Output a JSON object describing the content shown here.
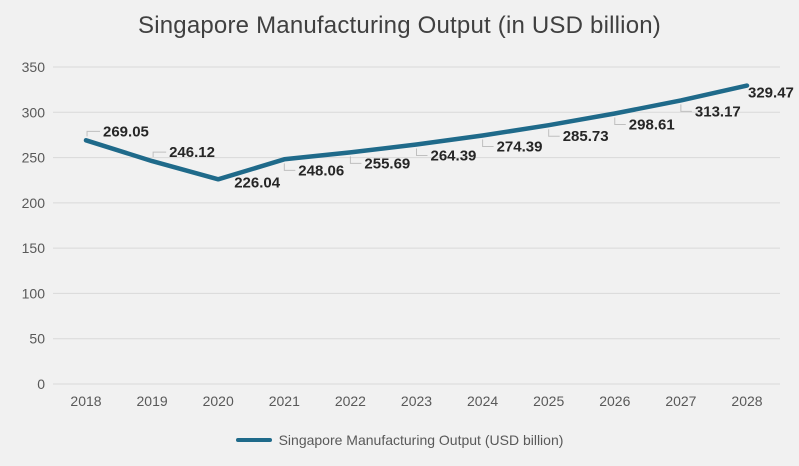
{
  "page": {
    "background_color": "#F1F1F1"
  },
  "header": {
    "title": "Singapore Manufacturing Output (in USD billion)"
  },
  "legend": {
    "label": "Singapore Manufacturing Output (USD billion)"
  },
  "colors": {
    "line": "#1F6A8A",
    "gridline": "#D9D9D9",
    "axis_text": "#595959",
    "title_text": "#404040",
    "data_label": "#262626",
    "leader": "#BFBFBF"
  },
  "chart_data": {
    "type": "line",
    "title": "Singapore Manufacturing Output (in USD billion)",
    "categories": [
      "2018",
      "2019",
      "2020",
      "2021",
      "2022",
      "2023",
      "2024",
      "2025",
      "2026",
      "2027",
      "2028"
    ],
    "series": [
      {
        "name": "Singapore Manufacturing Output (USD billion)",
        "values": [
          269.05,
          246.12,
          226.04,
          248.06,
          255.69,
          264.39,
          274.39,
          285.73,
          298.61,
          313.17,
          329.47
        ]
      }
    ],
    "xlabel": "",
    "ylabel": "",
    "ylim": [
      0,
      350
    ],
    "ytick_step": 50,
    "grid": true,
    "legend_position": "bottom",
    "data_labels_visible": true,
    "data_label_decimals": 2,
    "label_placements": [
      "above",
      "above",
      "right",
      "below",
      "below",
      "below",
      "below",
      "below",
      "below",
      "below",
      "end"
    ]
  }
}
